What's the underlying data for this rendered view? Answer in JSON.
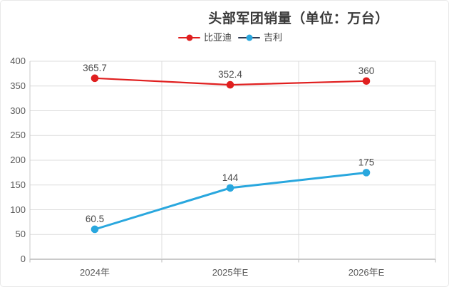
{
  "title": "头部军团销量（单位：万台）",
  "colors": {
    "byd_red": "#e01f1f",
    "geely_blue": "#29a7de",
    "geely_legend_line": "#2e3a52",
    "gridline": "#dcdcdc",
    "axis_line": "#b9b9b9",
    "data_label": "#4a4a4a",
    "tick_label": "#595959",
    "title_text": "#3a3a3a"
  },
  "chart_data": {
    "type": "line",
    "title": "头部军团销量（单位：万台）",
    "categories": [
      "2024年",
      "2025年E",
      "2026年E"
    ],
    "series": [
      {
        "name": "比亚迪",
        "values": [
          365.7,
          352.4,
          360
        ],
        "color": "#e01f1f",
        "legend_line_color": "#e01f1f",
        "line_width": 2.2
      },
      {
        "name": "吉利",
        "values": [
          60.5,
          144,
          175
        ],
        "color": "#29a7de",
        "legend_line_color": "#2e3a52",
        "line_width": 3
      }
    ],
    "yticks": [
      0,
      50,
      100,
      150,
      200,
      250,
      300,
      350,
      400
    ],
    "ylim": [
      0,
      400
    ],
    "xlabel": "",
    "ylabel": "",
    "grid": true,
    "data_labels": true,
    "marker": "circle",
    "legend_position": "top-center"
  }
}
